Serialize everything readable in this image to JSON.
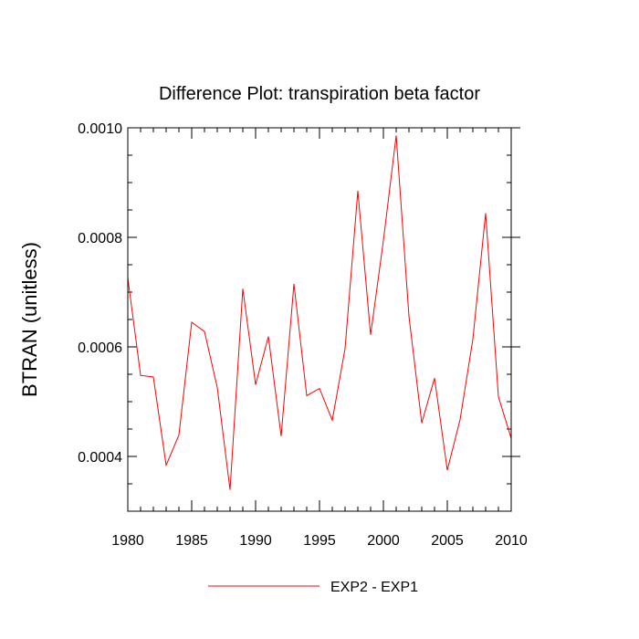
{
  "chart_data": {
    "type": "line",
    "title": "Difference Plot: transpiration beta factor",
    "xlabel": "",
    "ylabel": "BTRAN  (unitless)",
    "xlim": [
      1980,
      2010
    ],
    "ylim": [
      0.0003,
      0.001
    ],
    "x_ticks": [
      1980,
      1985,
      1990,
      1995,
      2000,
      2005,
      2010
    ],
    "x_tick_labels": [
      "1980",
      "1985",
      "1990",
      "1995",
      "2000",
      "2005",
      "2010"
    ],
    "y_ticks": [
      0.0004,
      0.0006,
      0.0008,
      0.001
    ],
    "y_tick_labels": [
      "0.0004",
      "0.0006",
      "0.0008",
      "0.0010"
    ],
    "grid": false,
    "legend_position": "bottom",
    "series": [
      {
        "name": "EXP2 - EXP1",
        "color": "#ff0000",
        "x": [
          1980,
          1981,
          1982,
          1983,
          1984,
          1985,
          1986,
          1987,
          1988,
          1989,
          1990,
          1991,
          1992,
          1993,
          1994,
          1995,
          1996,
          1997,
          1998,
          1999,
          2000,
          2001,
          2002,
          2003,
          2004,
          2005,
          2006,
          2007,
          2008,
          2009,
          2010
        ],
        "values": [
          0.000726,
          0.000548,
          0.000545,
          0.000384,
          0.000439,
          0.000645,
          0.000628,
          0.000526,
          0.000339,
          0.000706,
          0.000531,
          0.000619,
          0.000437,
          0.000715,
          0.000511,
          0.000524,
          0.000466,
          0.000597,
          0.000885,
          0.000622,
          0.000794,
          0.000986,
          0.000656,
          0.000461,
          0.000543,
          0.000375,
          0.000467,
          0.000614,
          0.000844,
          0.000509,
          0.000433
        ]
      }
    ]
  }
}
